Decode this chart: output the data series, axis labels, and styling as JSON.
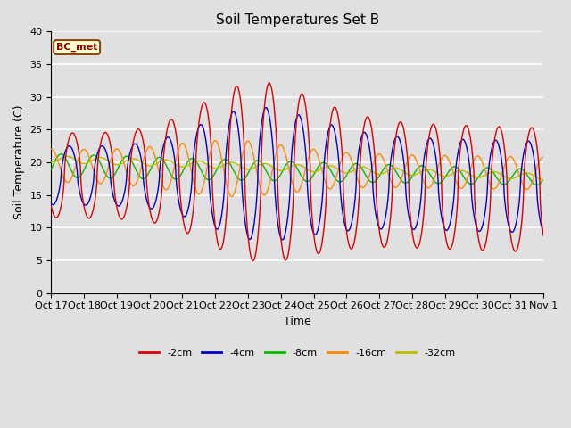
{
  "title": "Soil Temperatures Set B",
  "xlabel": "Time",
  "ylabel": "Soil Temperature (C)",
  "annotation": "BC_met",
  "ylim": [
    0,
    40
  ],
  "xlim": [
    0,
    15
  ],
  "yticks": [
    0,
    5,
    10,
    15,
    20,
    25,
    30,
    35,
    40
  ],
  "xtick_labels": [
    "Oct 17",
    "Oct 18",
    "Oct 19",
    "Oct 20",
    "Oct 21",
    "Oct 22",
    "Oct 23",
    "Oct 24",
    "Oct 25",
    "Oct 26",
    "Oct 27",
    "Oct 28",
    "Oct 29",
    "Oct 30",
    "Oct 31",
    "Nov 1"
  ],
  "series_colors": [
    "#dd0000",
    "#0000cc",
    "#00bb00",
    "#ff8800",
    "#bbbb00"
  ],
  "series_labels": [
    "-2cm",
    "-4cm",
    "-8cm",
    "-16cm",
    "-32cm"
  ],
  "bg_color": "#e0e0e0",
  "grid_color": "#ffffff",
  "title_fontsize": 11,
  "axis_label_fontsize": 9,
  "tick_fontsize": 8
}
